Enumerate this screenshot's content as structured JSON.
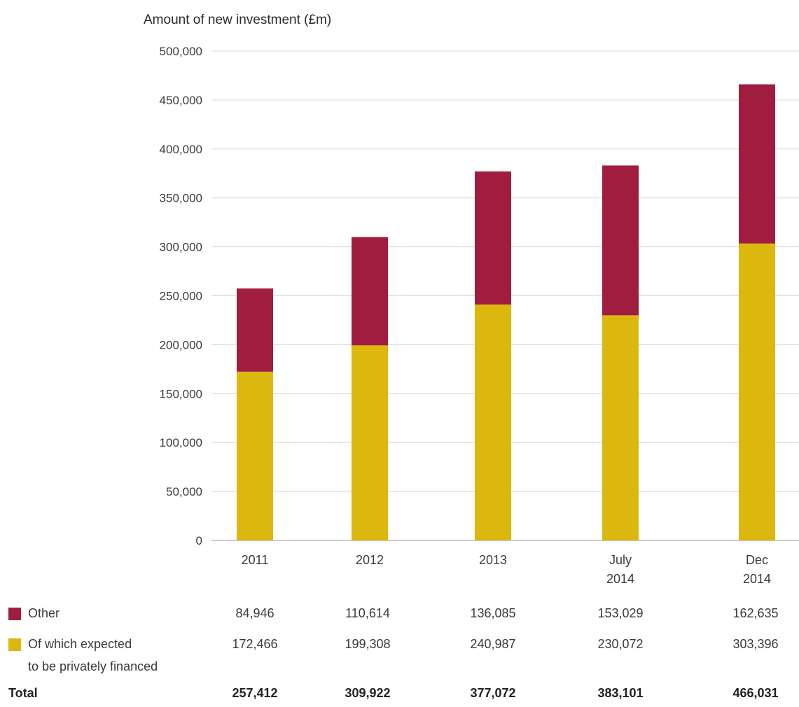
{
  "chart_data": {
    "type": "bar",
    "stacked": true,
    "ylabel": "Amount of new investment (£m)",
    "ylim": [
      0,
      500000
    ],
    "yticks": [
      "500,000",
      "450,000",
      "400,000",
      "350,000",
      "300,000",
      "250,000",
      "200,000",
      "150,000",
      "100,000",
      "50,000",
      "0"
    ],
    "categories": [
      [
        "2011"
      ],
      [
        "2012"
      ],
      [
        "2013"
      ],
      [
        "July",
        "2014"
      ],
      [
        "Dec",
        "2014"
      ]
    ],
    "series": [
      {
        "name": "Of which expected to be privately financed",
        "color": "#dcb70e",
        "values": [
          172466,
          199308,
          240987,
          230072,
          303396
        ]
      },
      {
        "name": "Other",
        "color": "#a01d3f",
        "values": [
          84946,
          110614,
          136085,
          153029,
          162635
        ]
      }
    ],
    "totals": [
      257412,
      309922,
      377072,
      383101,
      466031
    ],
    "grid": true
  },
  "table": {
    "other": {
      "label": "Other",
      "values": [
        "84,946",
        "110,614",
        "136,085",
        "153,029",
        "162,635"
      ]
    },
    "private": {
      "label_line1": "Of which expected",
      "label_line2": "to be privately financed",
      "values": [
        "172,466",
        "199,308",
        "240,987",
        "230,072",
        "303,396"
      ]
    },
    "total": {
      "label": "Total",
      "values": [
        "257,412",
        "309,922",
        "377,072",
        "383,101",
        "466,031"
      ]
    }
  }
}
